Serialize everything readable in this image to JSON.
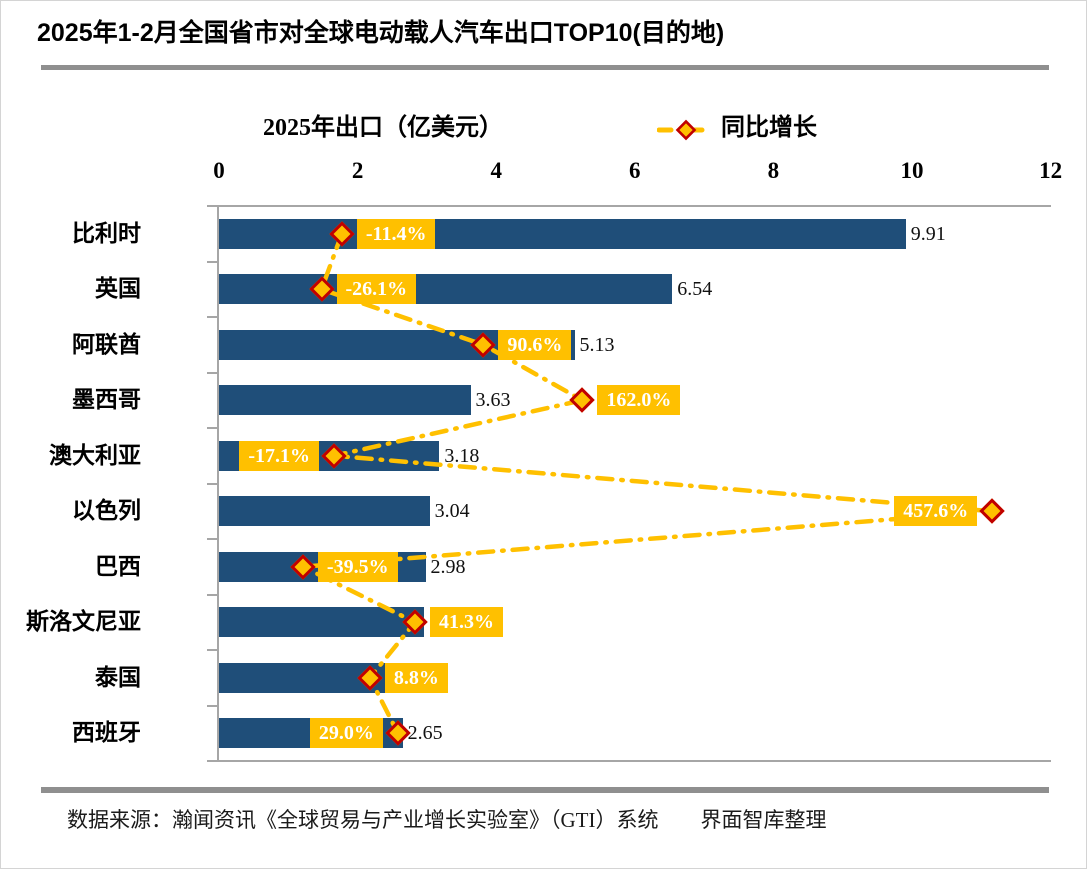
{
  "title": "2025年1-2月全国省市对全球电动载人汽车出口TOP10(目的地)",
  "legend": {
    "bar_label": "2025年出口（亿美元）",
    "line_label": "同比增长"
  },
  "source": "数据来源：瀚闻资讯《全球贸易与产业增长实验室》（GTI）系统　　界面智库整理",
  "colors": {
    "bar": "#1F4E79",
    "line": "#FFC000",
    "marker_fill": "#FFC000",
    "marker_border": "#C00000",
    "label_bg": "#FFC000",
    "label_text": "#FFFFFF",
    "axis": "#A6A6A6",
    "rule": "#8F8F8F"
  },
  "chart_data": {
    "type": "bar",
    "orientation": "horizontal",
    "title": "2025年1-2月全国省市对全球电动载人汽车出口TOP10(目的地)",
    "categories": [
      "比利时",
      "英国",
      "阿联酋",
      "墨西哥",
      "澳大利亚",
      "以色列",
      "巴西",
      "斯洛文尼亚",
      "泰国",
      "西班牙"
    ],
    "series": [
      {
        "name": "2025年出口（亿美元）",
        "type": "bar",
        "unit": "亿美元",
        "values": [
          9.91,
          6.54,
          5.13,
          3.63,
          3.18,
          3.04,
          2.98,
          2.96,
          2.73,
          2.65
        ]
      },
      {
        "name": "同比增长",
        "type": "line",
        "unit": "%",
        "values": [
          -11.4,
          -26.1,
          90.6,
          162.0,
          -17.1,
          457.6,
          -39.5,
          41.3,
          8.8,
          29.0
        ],
        "labels": [
          "-11.4%",
          "-26.1%",
          "90.6%",
          "162.0%",
          "-17.1%",
          "457.6%",
          "-39.5%",
          "41.3%",
          "8.8%",
          "29.0%"
        ],
        "label_side": [
          "right",
          "right",
          "right",
          "right",
          "left",
          "left",
          "right",
          "right",
          "right",
          "left"
        ]
      }
    ],
    "x_axis": {
      "ticks": [
        "0",
        "2",
        "4",
        "6",
        "8",
        "10",
        "12"
      ],
      "range": [
        0,
        12
      ],
      "grid": false
    },
    "secondary_axis": {
      "range": [
        -100,
        500
      ],
      "visible": false
    },
    "legend_position": "top",
    "xlabel": "",
    "ylabel": ""
  }
}
